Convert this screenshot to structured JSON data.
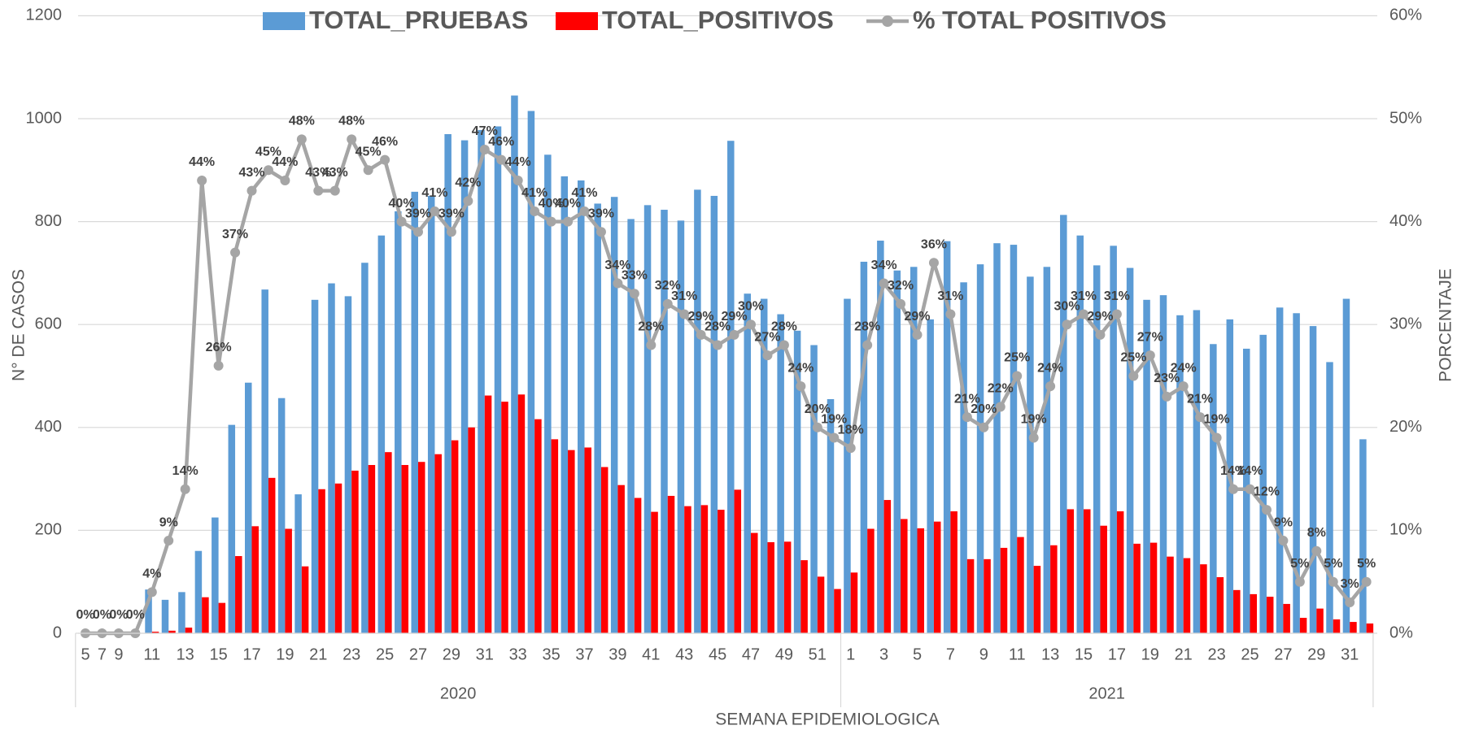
{
  "chart_data": {
    "type": "bar_line",
    "x_title": "SEMANA EPIDEMIOLOGICA",
    "y_title": "N° DE CASOS",
    "y2_title": "PORCENTAJE",
    "categories": [
      5,
      7,
      9,
      null,
      11,
      null,
      13,
      null,
      15,
      null,
      17,
      null,
      19,
      null,
      21,
      null,
      23,
      null,
      25,
      null,
      27,
      null,
      29,
      null,
      31,
      null,
      33,
      null,
      35,
      null,
      37,
      null,
      39,
      null,
      41,
      null,
      43,
      null,
      45,
      null,
      47,
      null,
      49,
      null,
      51,
      null,
      1,
      null,
      3,
      null,
      5,
      null,
      7,
      null,
      9,
      null,
      11,
      null,
      13,
      null,
      15,
      null,
      17,
      null,
      19,
      null,
      21,
      null,
      23,
      null,
      25,
      null,
      27,
      null,
      29,
      null,
      31,
      null
    ],
    "groups": [
      {
        "label": "2020",
        "count": 46
      },
      {
        "label": "2021",
        "count": 32
      }
    ],
    "ylim": [
      0,
      1200
    ],
    "yticks": [
      0,
      200,
      400,
      600,
      800,
      1000,
      1200
    ],
    "y2lim": [
      0,
      60
    ],
    "y2ticks": [
      {
        "value": 0,
        "label": "0%"
      },
      {
        "value": 10,
        "label": "10%"
      },
      {
        "value": 20,
        "label": "20%"
      },
      {
        "value": 30,
        "label": "30%"
      },
      {
        "value": 40,
        "label": "40%"
      },
      {
        "value": 50,
        "label": "50%"
      },
      {
        "value": 60,
        "label": "60%"
      }
    ],
    "grid": true,
    "legend": "top",
    "series": [
      {
        "name": "TOTAL_PRUEBAS",
        "color": "#5b9bd5",
        "kind": "bar",
        "values": [
          0,
          0,
          0,
          0,
          85,
          65,
          80,
          160,
          225,
          405,
          487,
          668,
          457,
          270,
          648,
          680,
          655,
          720,
          773,
          820,
          858,
          850,
          970,
          958,
          978,
          985,
          1045,
          1015,
          930,
          888,
          880,
          835,
          848,
          805,
          832,
          823,
          802,
          862,
          850,
          957,
          660,
          650,
          620,
          588,
          560,
          455,
          650,
          722,
          763,
          705,
          712,
          610,
          762,
          682,
          717,
          758,
          755,
          693,
          712,
          813,
          773,
          715,
          753,
          710,
          648,
          657,
          618,
          628,
          562,
          610,
          553,
          580,
          633,
          622,
          597,
          527,
          650,
          377
        ]
      },
      {
        "name": "TOTAL_POSITIVOS",
        "color": "#ff0000",
        "kind": "bar",
        "values": [
          0,
          0,
          0,
          0,
          3,
          5,
          11,
          70,
          59,
          150,
          208,
          302,
          203,
          130,
          280,
          291,
          316,
          327,
          352,
          327,
          333,
          348,
          375,
          400,
          462,
          450,
          464,
          416,
          377,
          356,
          361,
          323,
          288,
          263,
          236,
          267,
          247,
          249,
          240,
          279,
          195,
          177,
          178,
          142,
          110,
          86,
          118,
          203,
          259,
          222,
          204,
          217,
          237,
          144,
          144,
          166,
          187,
          131,
          171,
          241,
          241,
          209,
          237,
          174,
          176,
          149,
          146,
          134,
          109,
          84,
          76,
          71,
          57,
          30,
          48,
          27,
          22,
          19
        ]
      },
      {
        "name": "% TOTAL POSITIVOS",
        "color": "#a5a5a5",
        "kind": "line",
        "axis": "y2",
        "values": [
          0,
          0,
          0,
          0,
          4,
          9,
          14,
          44,
          26,
          37,
          43,
          45,
          44,
          48,
          43,
          43,
          48,
          45,
          46,
          40,
          39,
          41,
          39,
          42,
          47,
          46,
          44,
          41,
          40,
          40,
          41,
          39,
          34,
          33,
          28,
          32,
          31,
          29,
          28,
          29,
          30,
          27,
          28,
          24,
          20,
          19,
          18,
          28,
          34,
          32,
          29,
          36,
          31,
          21,
          20,
          22,
          25,
          19,
          24,
          30,
          31,
          29,
          31,
          25,
          27,
          23,
          24,
          21,
          19,
          14,
          14,
          12,
          9,
          5,
          8,
          5,
          3,
          5
        ],
        "value_labels": [
          "0%",
          "0%",
          "0%",
          "0%",
          "4%",
          "9%",
          "14%",
          "44%",
          "26%",
          "37%",
          "43%",
          "45%",
          "44%",
          "48%",
          "43%",
          "43%",
          "48%",
          "45%",
          "46%",
          "40%",
          "39%",
          "41%",
          "39%",
          "42%",
          "47%",
          "46%",
          "44%",
          "41%",
          "40%",
          "40%",
          "41%",
          "39%",
          "34%",
          "33%",
          "28%",
          "32%",
          "31%",
          "29%",
          "28%",
          "29%",
          "30%",
          "27%",
          "28%",
          "24%",
          "20%",
          "19%",
          "18%",
          "28%",
          "34%",
          "32%",
          "29%",
          "36%",
          "31%",
          "21%",
          "20%",
          "22%",
          "25%",
          "19%",
          "24%",
          "30%",
          "31%",
          "29%",
          "31%",
          "25%",
          "27%",
          "23%",
          "24%",
          "21%",
          "19%",
          "14%",
          "14%",
          "12%",
          "9%",
          "5%",
          "8%",
          "5%",
          "3%",
          "5%"
        ]
      }
    ]
  }
}
